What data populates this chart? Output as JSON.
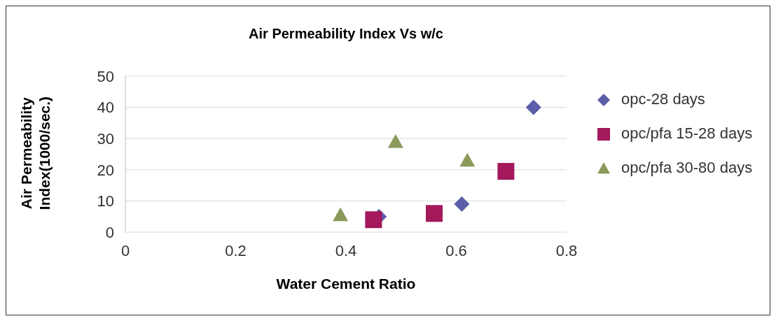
{
  "chart_data": {
    "type": "scatter",
    "title": "Air Permeability Index Vs w/c",
    "xlabel": "Water Cement Ratio",
    "ylabel": "Air Permeability Index(1000/sec.)",
    "xlim": [
      0,
      0.8
    ],
    "xticks": [
      0,
      0.2,
      0.4,
      0.6,
      0.8
    ],
    "ylim": [
      0,
      50
    ],
    "yticks": [
      0,
      10,
      20,
      30,
      40,
      50
    ],
    "grid": "y",
    "legend": "right",
    "series": [
      {
        "name": "opc-28 days",
        "color": "#5b5ea8",
        "marker": "diamond",
        "x": [
          0.46,
          0.61,
          0.74
        ],
        "values": [
          5,
          9,
          40
        ]
      },
      {
        "name": "opc/pfa 15-28 days",
        "color": "#a3195b",
        "marker": "square",
        "x": [
          0.45,
          0.56,
          0.69
        ],
        "values": [
          4,
          6,
          19.5
        ]
      },
      {
        "name": "opc/pfa 30-80 days",
        "color": "#8b9a5b",
        "marker": "triangle",
        "x": [
          0.39,
          0.49,
          0.62
        ],
        "values": [
          5.5,
          29,
          23
        ]
      }
    ]
  }
}
